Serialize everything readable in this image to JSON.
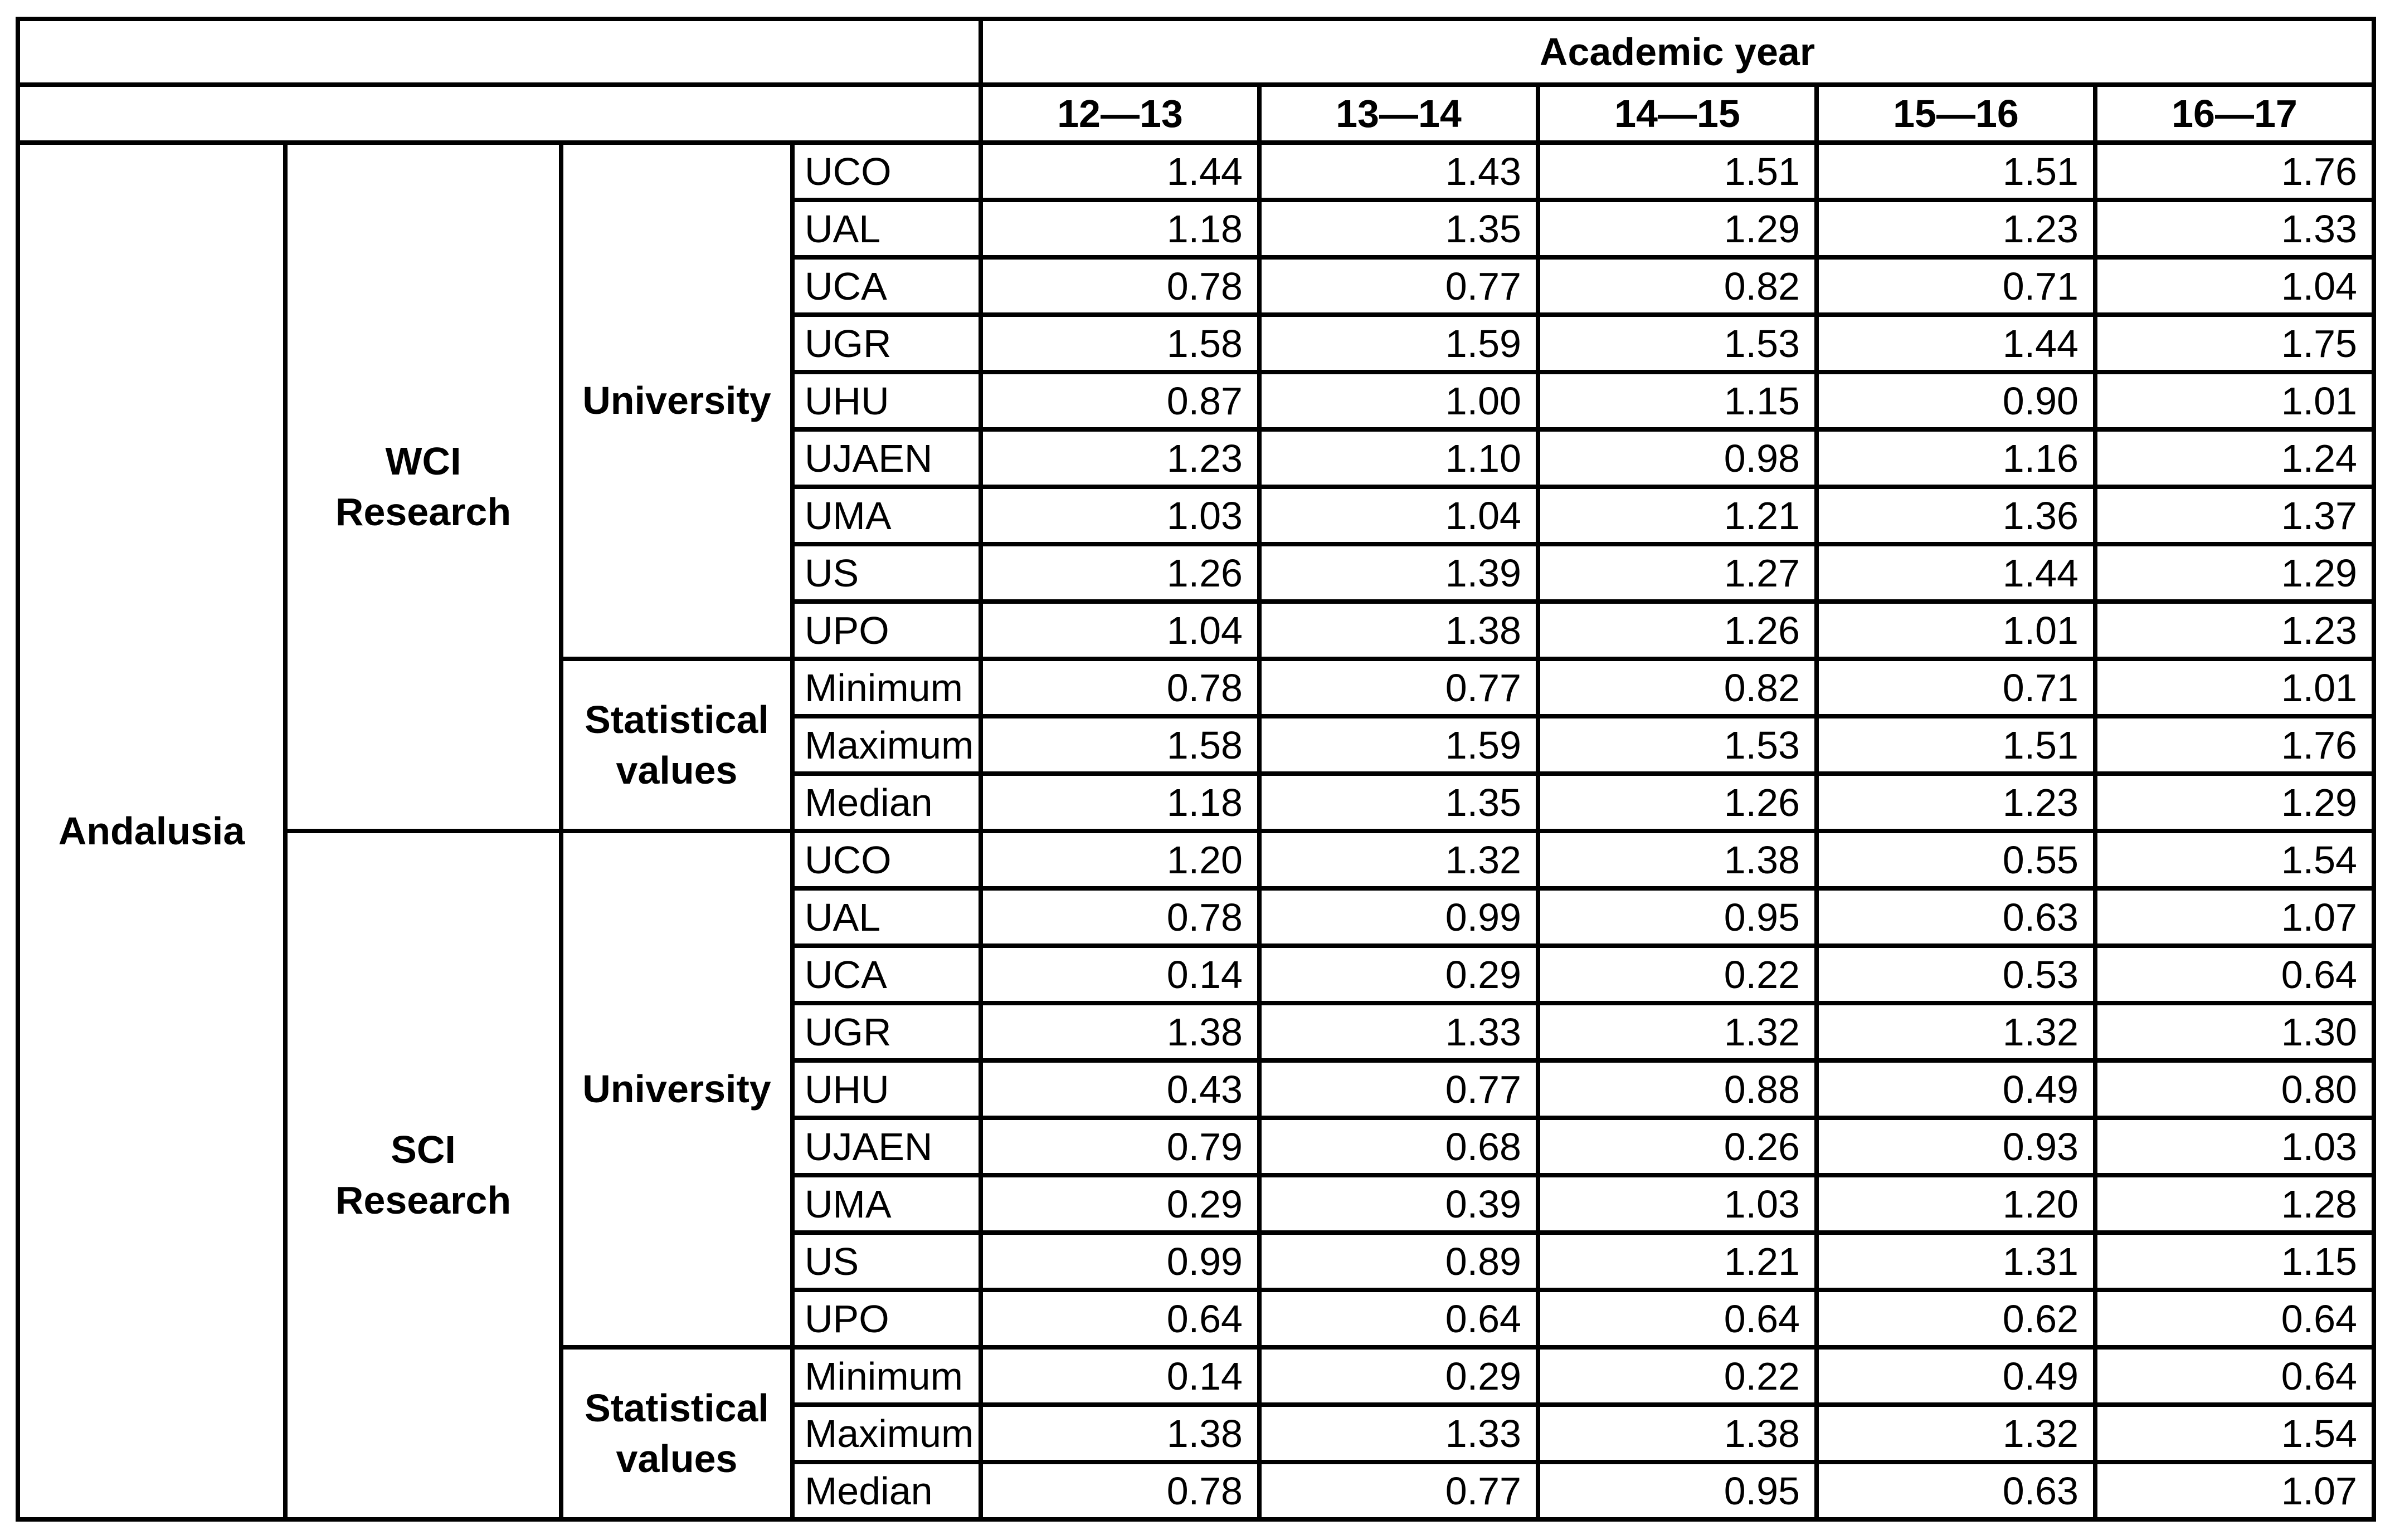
{
  "region": "Andalusia",
  "header": {
    "title": "Academic year",
    "years": [
      "12—13",
      "13—14",
      "14—15",
      "15—16",
      "16—17"
    ]
  },
  "colors": {
    "green_dark": "#70AD47",
    "green_light": "#A9D18E",
    "yellow": "#FFE699",
    "yellow_text": "#9C6500",
    "pink": "#FFC7CE",
    "pink_text": "#C00000",
    "border": "#000000"
  },
  "sections": [
    {
      "label_lines": [
        "WCI",
        "Research"
      ],
      "university_label": "University",
      "stat_label_lines": [
        "Statistical",
        "values"
      ],
      "rows": [
        {
          "name": "UCO",
          "values": [
            "1.44",
            "1.43",
            "1.51",
            "1.51",
            "1.76"
          ],
          "fills": [
            "Y",
            "Y",
            "Y",
            "Y",
            "Y"
          ]
        },
        {
          "name": "UAL",
          "values": [
            "1.18",
            "1.35",
            "1.29",
            "1.23",
            "1.33"
          ],
          "fills": [
            "Y",
            "Y",
            "Y",
            "Y",
            "Y"
          ]
        },
        {
          "name": "UCA",
          "values": [
            "0.78",
            "0.77",
            "0.82",
            "0.71",
            "1.04"
          ],
          "fills": [
            "P",
            "P",
            "P",
            "P",
            "Y"
          ]
        },
        {
          "name": "UGR",
          "values": [
            "1.58",
            "1.59",
            "1.53",
            "1.44",
            "1.75"
          ],
          "fills": [
            "Y",
            "Y",
            "Y",
            "Y",
            "Y"
          ]
        },
        {
          "name": "UHU",
          "values": [
            "0.87",
            "1.00",
            "1.15",
            "0.90",
            "1.01"
          ],
          "fills": [
            "P",
            "Y",
            "Y",
            "P",
            "Y"
          ]
        },
        {
          "name": "UJAEN",
          "values": [
            "1.23",
            "1.10",
            "0.98",
            "1.16",
            "1.24"
          ],
          "fills": [
            "Y",
            "Y",
            "P",
            "Y",
            "Y"
          ]
        },
        {
          "name": "UMA",
          "values": [
            "1.03",
            "1.04",
            "1.21",
            "1.36",
            "1.37"
          ],
          "fills": [
            "Y",
            "Y",
            "Y",
            "Y",
            "Y"
          ]
        },
        {
          "name": "US",
          "values": [
            "1.26",
            "1.39",
            "1.27",
            "1.44",
            "1.29"
          ],
          "fills": [
            "Y",
            "Y",
            "Y",
            "Y",
            "Y"
          ]
        },
        {
          "name": "UPO",
          "values": [
            "1.04",
            "1.38",
            "1.26",
            "1.01",
            "1.23"
          ],
          "fills": [
            "Y",
            "Y",
            "Y",
            "Y",
            "Y"
          ]
        }
      ],
      "stats": [
        {
          "name": "Minimum",
          "values": [
            "0.78",
            "0.77",
            "0.82",
            "0.71",
            "1.01"
          ]
        },
        {
          "name": "Maximum",
          "values": [
            "1.58",
            "1.59",
            "1.53",
            "1.51",
            "1.76"
          ]
        },
        {
          "name": "Median",
          "values": [
            "1.18",
            "1.35",
            "1.26",
            "1.23",
            "1.29"
          ]
        }
      ]
    },
    {
      "label_lines": [
        "SCI",
        "Research"
      ],
      "university_label": "University",
      "stat_label_lines": [
        "Statistical",
        "values"
      ],
      "rows": [
        {
          "name": "UCO",
          "values": [
            "1.20",
            "1.32",
            "1.38",
            "0.55",
            "1.54"
          ],
          "fills": [
            "Y",
            "Y",
            "Y",
            "P",
            "Y"
          ]
        },
        {
          "name": "UAL",
          "values": [
            "0.78",
            "0.99",
            "0.95",
            "0.63",
            "1.07"
          ],
          "fills": [
            "P",
            "P",
            "P",
            "P",
            "Y"
          ]
        },
        {
          "name": "UCA",
          "values": [
            "0.14",
            "0.29",
            "0.22",
            "0.53",
            "0.64"
          ],
          "fills": [
            "P",
            "P",
            "P",
            "P",
            "P"
          ]
        },
        {
          "name": "UGR",
          "values": [
            "1.38",
            "1.33",
            "1.32",
            "1.32",
            "1.30"
          ],
          "fills": [
            "Y",
            "Y",
            "Y",
            "Y",
            "Y"
          ]
        },
        {
          "name": "UHU",
          "values": [
            "0.43",
            "0.77",
            "0.88",
            "0.49",
            "0.80"
          ],
          "fills": [
            "P",
            "P",
            "P",
            "P",
            "P"
          ]
        },
        {
          "name": "UJAEN",
          "values": [
            "0.79",
            "0.68",
            "0.26",
            "0.93",
            "1.03"
          ],
          "fills": [
            "P",
            "P",
            "P",
            "P",
            "Y"
          ]
        },
        {
          "name": "UMA",
          "values": [
            "0.29",
            "0.39",
            "1.03",
            "1.20",
            "1.28"
          ],
          "fills": [
            "P",
            "P",
            "Y",
            "Y",
            "Y"
          ]
        },
        {
          "name": "US",
          "values": [
            "0.99",
            "0.89",
            "1.21",
            "1.31",
            "1.15"
          ],
          "fills": [
            "P",
            "P",
            "Y",
            "Y",
            "Y"
          ]
        },
        {
          "name": "UPO",
          "values": [
            "0.64",
            "0.64",
            "0.64",
            "0.62",
            "0.64"
          ],
          "fills": [
            "P",
            "P",
            "P",
            "P",
            "P"
          ]
        }
      ],
      "stats": [
        {
          "name": "Minimum",
          "values": [
            "0.14",
            "0.29",
            "0.22",
            "0.49",
            "0.64"
          ]
        },
        {
          "name": "Maximum",
          "values": [
            "1.38",
            "1.33",
            "1.38",
            "1.32",
            "1.54"
          ]
        },
        {
          "name": "Median",
          "values": [
            "0.78",
            "0.77",
            "0.95",
            "0.63",
            "1.07"
          ]
        }
      ]
    }
  ]
}
